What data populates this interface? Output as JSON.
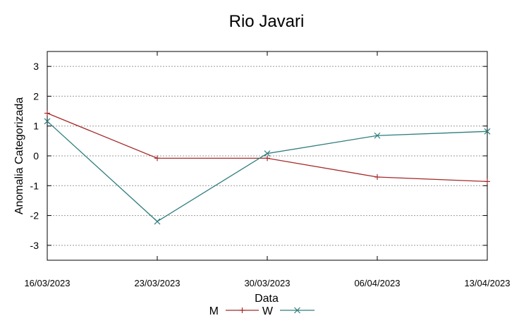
{
  "chart_data": {
    "type": "line",
    "title": "Rio Javari",
    "xlabel": "Data",
    "ylabel": "Anomalia Categorizada",
    "categories": [
      "16/03/2023",
      "23/03/2023",
      "30/03/2023",
      "06/04/2023",
      "13/04/2023"
    ],
    "yticks": [
      3,
      2,
      1,
      0,
      -1,
      -2,
      -3
    ],
    "ylim": [
      -3.5,
      3.5
    ],
    "grid": true,
    "legend_position": "bottom",
    "series": [
      {
        "name": "M",
        "color": "#a52a2a",
        "marker": "plus",
        "values": [
          1.43,
          -0.08,
          -0.08,
          -0.71,
          -0.86
        ]
      },
      {
        "name": "W",
        "color": "#2e7d7d",
        "marker": "x",
        "values": [
          1.16,
          -2.2,
          0.08,
          0.68,
          0.82
        ]
      }
    ]
  }
}
